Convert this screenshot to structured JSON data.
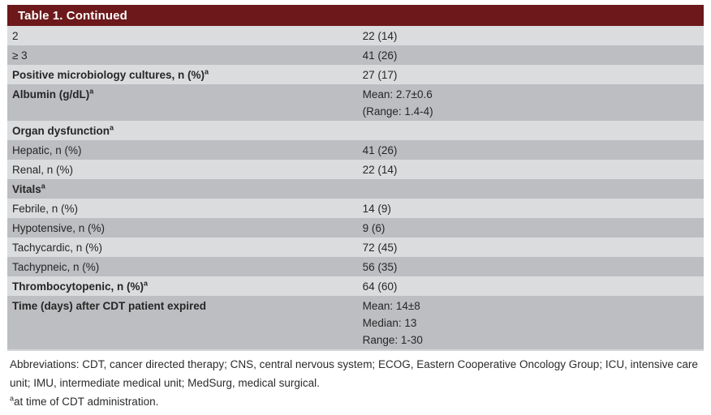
{
  "table": {
    "title": "Table 1. Continued",
    "rows": [
      {
        "label": "2",
        "bold": false,
        "values": [
          "22 (14)"
        ]
      },
      {
        "label": "≥ 3",
        "bold": false,
        "values": [
          "41 (26)"
        ]
      },
      {
        "label": "Positive microbiology cultures, n (%)",
        "sup": "a",
        "bold": true,
        "values": [
          "27 (17)"
        ]
      },
      {
        "label": "Albumin (g/dL)",
        "sup": "a",
        "bold": true,
        "values": [
          "Mean: 2.7±0.6",
          "(Range: 1.4-4)"
        ]
      },
      {
        "label": "Organ dysfunction",
        "sup": "a",
        "bold": true,
        "values": []
      },
      {
        "label": "Hepatic, n (%)",
        "bold": false,
        "values": [
          "41 (26)"
        ]
      },
      {
        "label": "Renal, n (%)",
        "bold": false,
        "values": [
          "22 (14)"
        ]
      },
      {
        "label": "Vitals",
        "sup": "a",
        "bold": true,
        "values": []
      },
      {
        "label": "Febrile, n (%)",
        "bold": false,
        "values": [
          "14 (9)"
        ]
      },
      {
        "label": "Hypotensive, n (%)",
        "bold": false,
        "values": [
          "9 (6)"
        ]
      },
      {
        "label": "Tachycardic, n (%)",
        "bold": false,
        "values": [
          "72 (45)"
        ]
      },
      {
        "label": "Tachypneic, n (%)",
        "bold": false,
        "values": [
          "56 (35)"
        ]
      },
      {
        "label": "Thrombocytopenic, n (%)",
        "sup": "a",
        "bold": true,
        "values": [
          "64 (60)"
        ]
      },
      {
        "label": "Time (days) after CDT patient expired",
        "bold": true,
        "values": [
          "Mean: 14±8",
          "Median: 13",
          "Range: 1-30"
        ]
      }
    ]
  },
  "footnotes": {
    "abbreviations": "Abbreviations: CDT, cancer directed therapy; CNS, central nervous system; ECOG, Eastern Cooperative Oncology Group; ICU, intensive care unit; IMU, intermediate medical unit; MedSurg, medical surgical.",
    "a_marker": "a",
    "a_text": "at time of CDT administration."
  },
  "colors": {
    "header_bg": "#6d191b",
    "title_text": "#ffffff",
    "row_light": "#dbdcde",
    "row_dark": "#bdbec2",
    "body_text": "#262626"
  }
}
